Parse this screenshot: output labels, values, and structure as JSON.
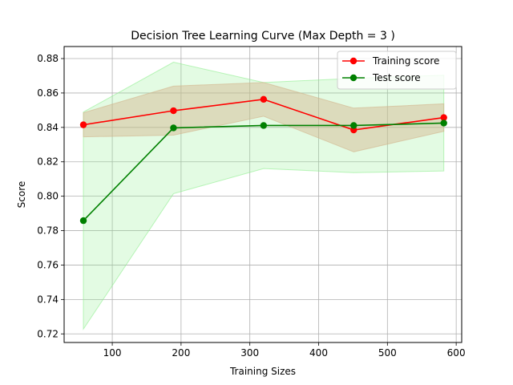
{
  "chart_data": {
    "type": "line",
    "title": "Decision Tree Learning Curve (Max Depth = 3 )",
    "xlabel": "Training Sizes",
    "ylabel": "Score",
    "xlim": [
      30,
      608
    ],
    "ylim": [
      0.715,
      0.887
    ],
    "xticks": [
      100,
      200,
      300,
      400,
      500,
      600
    ],
    "xtick_labels": [
      "100",
      "200",
      "300",
      "400",
      "500",
      "600"
    ],
    "yticks": [
      0.72,
      0.74,
      0.76,
      0.78,
      0.8,
      0.82,
      0.84,
      0.86,
      0.88
    ],
    "ytick_labels": [
      "0.72",
      "0.74",
      "0.76",
      "0.78",
      "0.80",
      "0.82",
      "0.84",
      "0.86",
      "0.88"
    ],
    "grid": true,
    "legend_position": "top-right",
    "x": [
      58,
      189,
      320,
      451,
      582
    ],
    "series": [
      {
        "name": "Training score",
        "color": "#ff0000",
        "band_color": "#d2b48c",
        "values": [
          0.8415,
          0.8497,
          0.8563,
          0.8385,
          0.8457
        ],
        "band_lower": [
          0.8345,
          0.8355,
          0.8465,
          0.8258,
          0.8377
        ],
        "band_upper": [
          0.8485,
          0.864,
          0.8661,
          0.8512,
          0.8537
        ]
      },
      {
        "name": "Test score",
        "color": "#008000",
        "band_color": "#90ee90",
        "values": [
          0.7858,
          0.8397,
          0.8411,
          0.8411,
          0.8425
        ],
        "band_lower": [
          0.7228,
          0.8015,
          0.8161,
          0.8137,
          0.8147
        ],
        "band_upper": [
          0.8489,
          0.8779,
          0.8661,
          0.8685,
          0.8703
        ]
      }
    ]
  }
}
